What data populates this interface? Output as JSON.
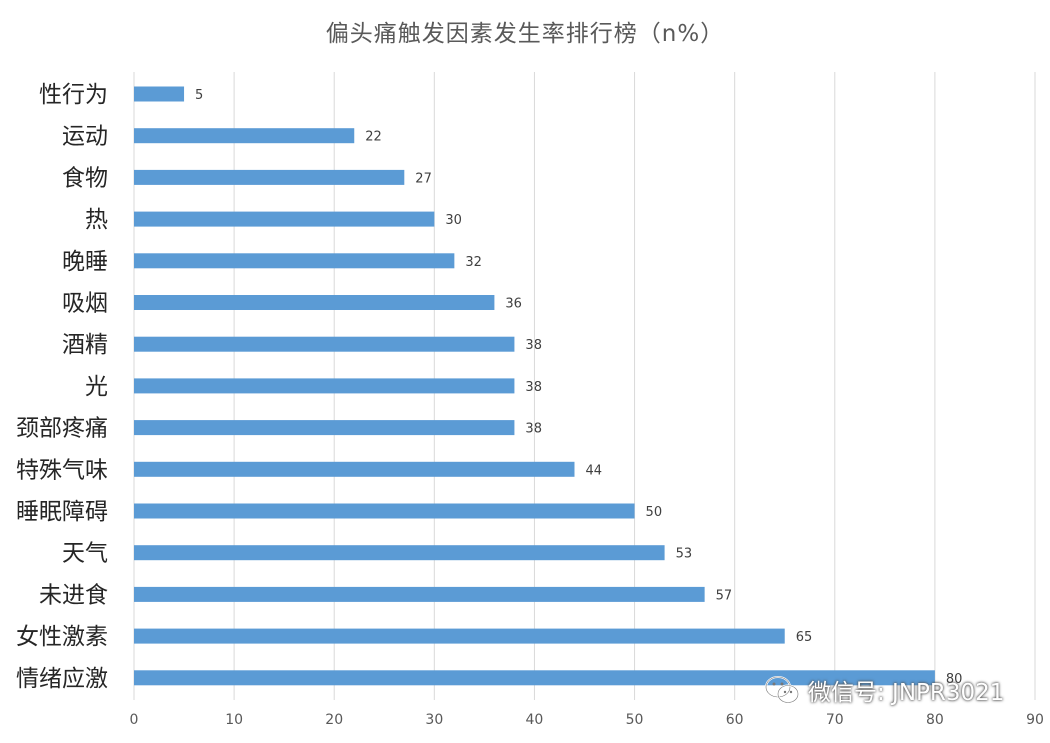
{
  "chart_data": {
    "type": "bar",
    "orientation": "horizontal",
    "title": "偏头痛触发因素发生率排行榜（n%）",
    "categories": [
      "性行为",
      "运动",
      "食物",
      "热",
      "晚睡",
      "吸烟",
      "酒精",
      "光",
      "颈部疼痛",
      "特殊气味",
      "睡眠障碍",
      "天气",
      "未进食",
      "女性激素",
      "情绪应激"
    ],
    "values": [
      5,
      22,
      27,
      30,
      32,
      36,
      38,
      38,
      38,
      44,
      50,
      53,
      57,
      65,
      80
    ],
    "xlim": [
      0,
      90
    ],
    "xticks": [
      0,
      10,
      20,
      30,
      40,
      50,
      60,
      70,
      80,
      90
    ],
    "grid": "vertical",
    "legend": "none",
    "xlabel": "",
    "ylabel": "",
    "colors": {
      "bar": "#5b9bd5",
      "grid": "#d9d9d9",
      "tick_text": "#595959",
      "category_text": "#262626",
      "value_text": "#404040"
    }
  },
  "watermark": {
    "text": "微信号: JNPR3021",
    "icon": "wechat-icon"
  }
}
